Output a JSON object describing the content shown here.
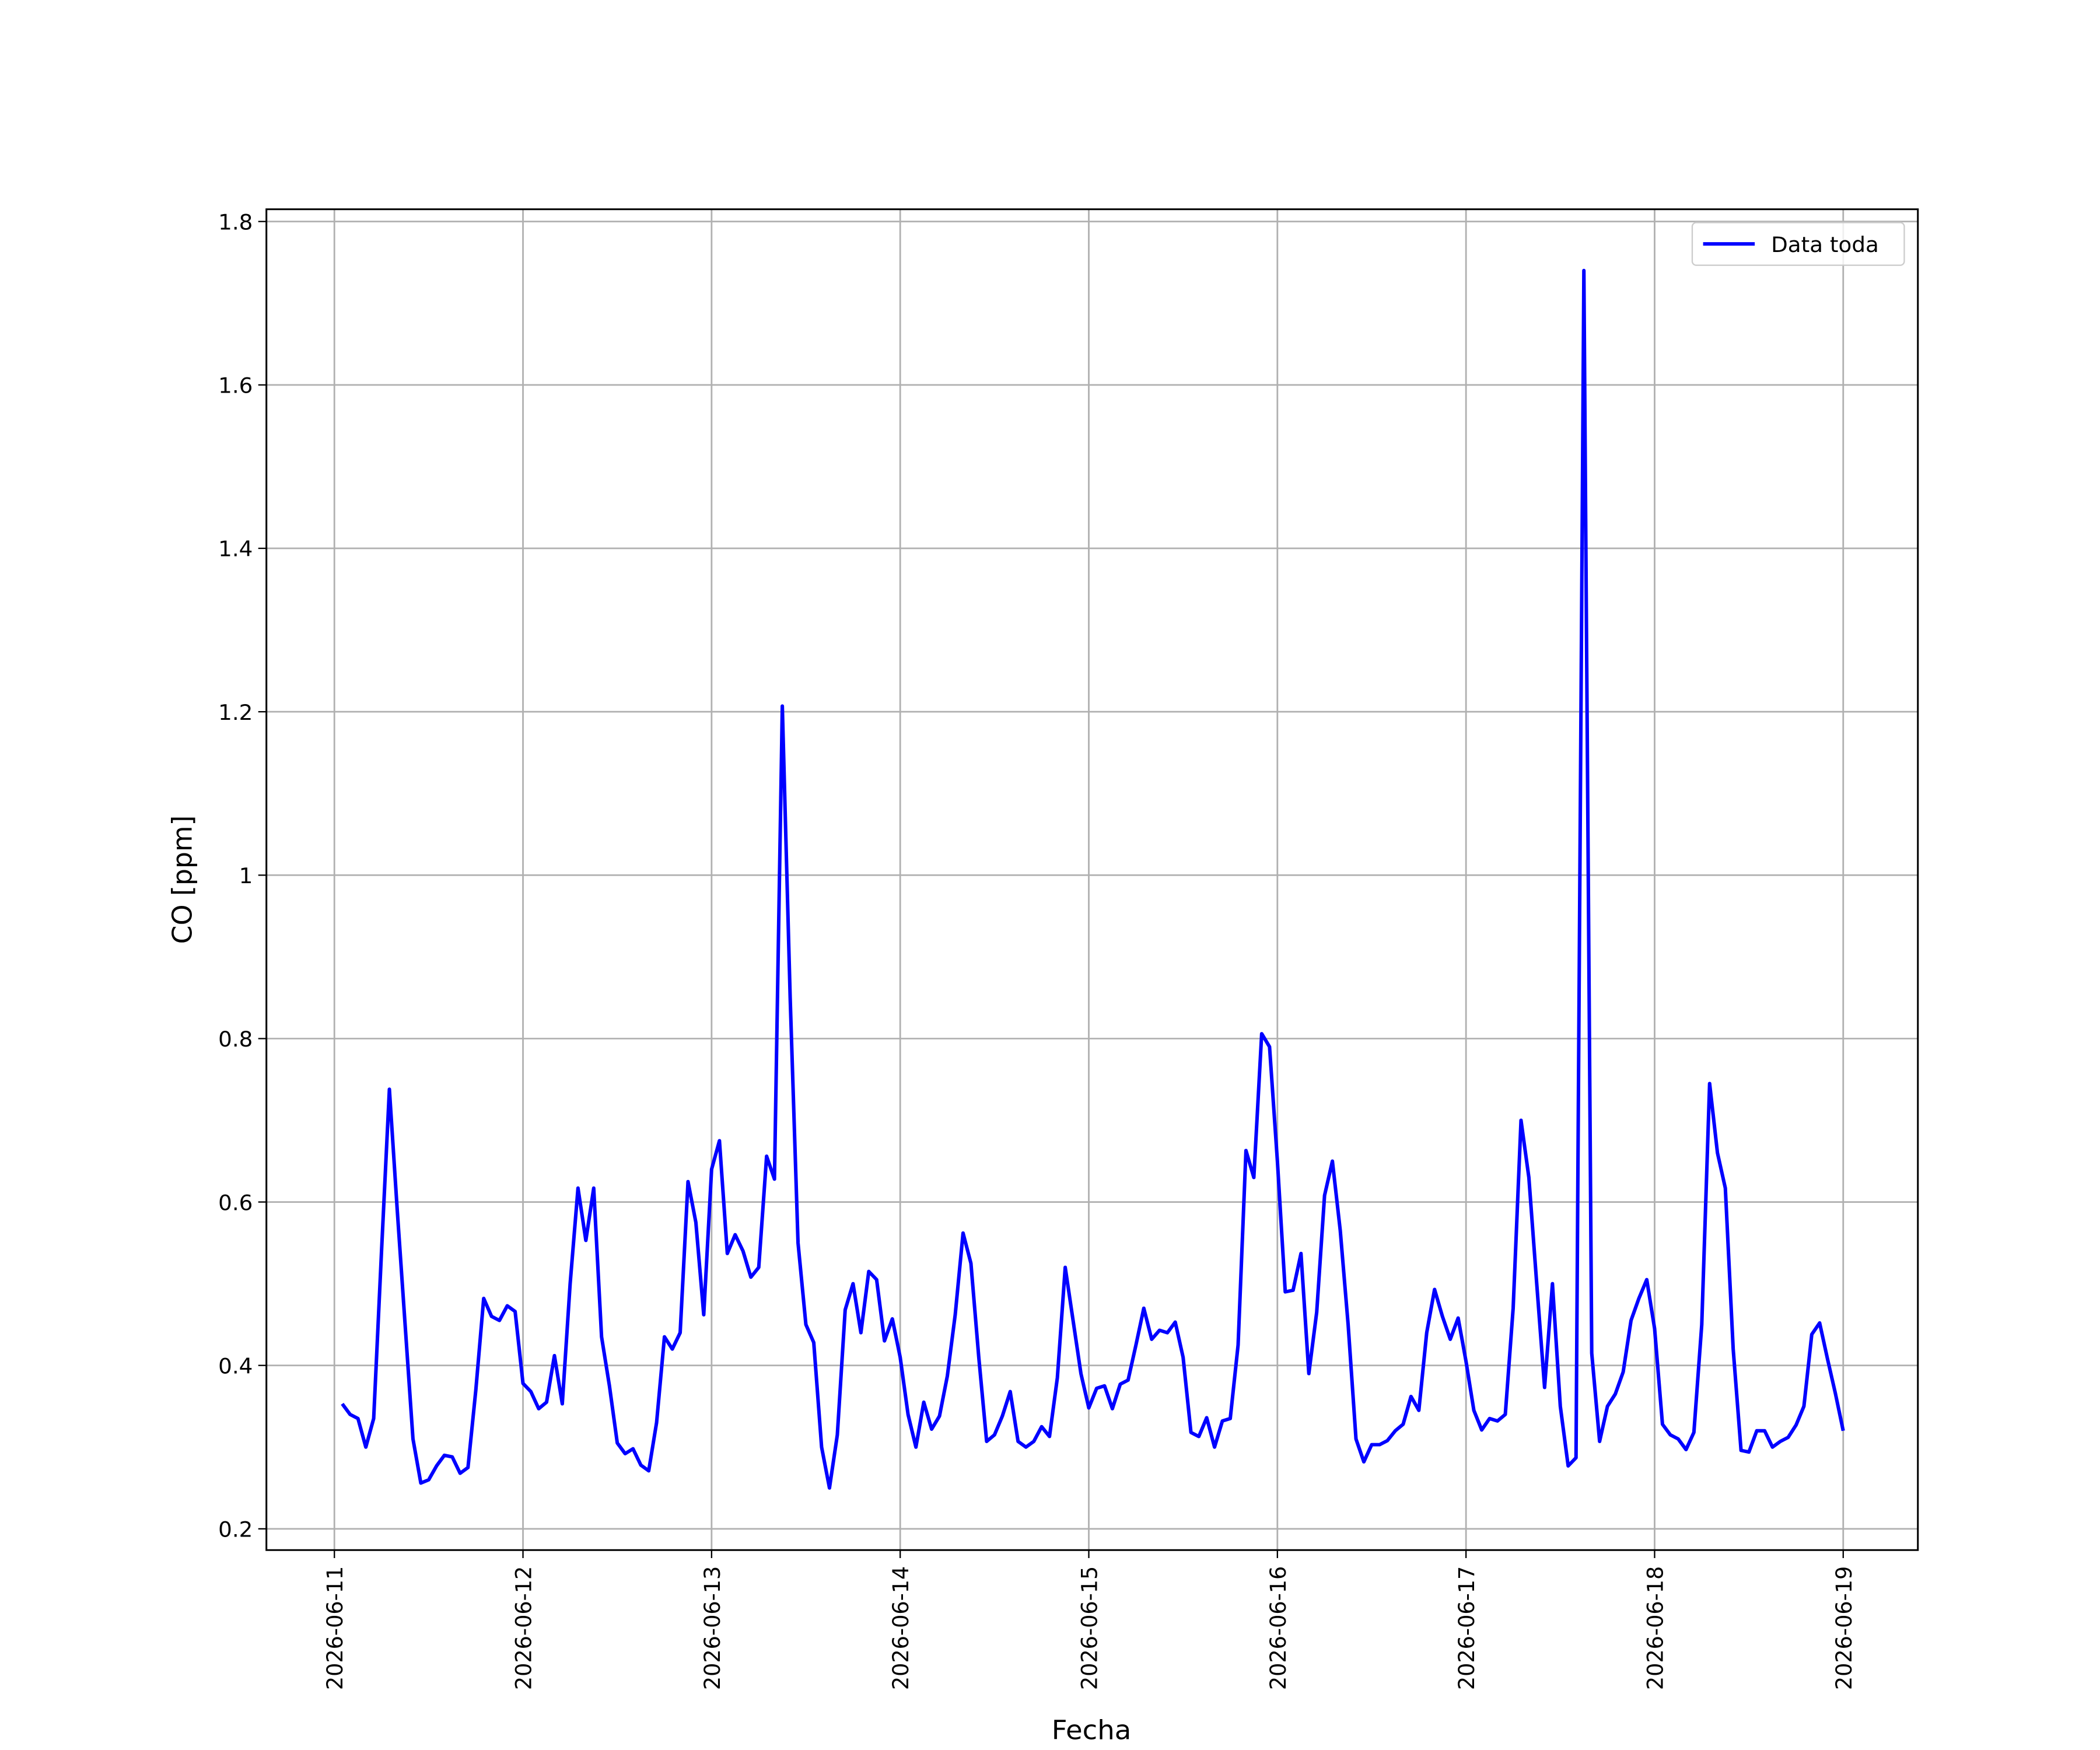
{
  "chart_data": {
    "type": "line",
    "x_label": "Fecha",
    "y_label": "CO [ppm]",
    "x": [
      "2026-06-11 01:00",
      "2026-06-11 02:00",
      "2026-06-11 03:00",
      "2026-06-11 04:00",
      "2026-06-11 05:00",
      "2026-06-11 06:00",
      "2026-06-11 07:00",
      "2026-06-11 08:00",
      "2026-06-11 09:00",
      "2026-06-11 10:00",
      "2026-06-11 11:00",
      "2026-06-11 12:00",
      "2026-06-11 13:00",
      "2026-06-11 14:00",
      "2026-06-11 15:00",
      "2026-06-11 16:00",
      "2026-06-11 17:00",
      "2026-06-11 18:00",
      "2026-06-11 19:00",
      "2026-06-11 20:00",
      "2026-06-11 21:00",
      "2026-06-11 22:00",
      "2026-06-11 23:00",
      "2026-06-12 00:00",
      "2026-06-12 01:00",
      "2026-06-12 02:00",
      "2026-06-12 03:00",
      "2026-06-12 04:00",
      "2026-06-12 05:00",
      "2026-06-12 06:00",
      "2026-06-12 07:00",
      "2026-06-12 08:00",
      "2026-06-12 09:00",
      "2026-06-12 10:00",
      "2026-06-12 11:00",
      "2026-06-12 12:00",
      "2026-06-12 13:00",
      "2026-06-12 14:00",
      "2026-06-12 15:00",
      "2026-06-12 16:00",
      "2026-06-12 17:00",
      "2026-06-12 18:00",
      "2026-06-12 19:00",
      "2026-06-12 20:00",
      "2026-06-12 21:00",
      "2026-06-12 22:00",
      "2026-06-12 23:00",
      "2026-06-13 00:00",
      "2026-06-13 01:00",
      "2026-06-13 02:00",
      "2026-06-13 03:00",
      "2026-06-13 04:00",
      "2026-06-13 05:00",
      "2026-06-13 06:00",
      "2026-06-13 07:00",
      "2026-06-13 08:00",
      "2026-06-13 09:00",
      "2026-06-13 10:00",
      "2026-06-13 11:00",
      "2026-06-13 12:00",
      "2026-06-13 13:00",
      "2026-06-13 14:00",
      "2026-06-13 15:00",
      "2026-06-13 16:00",
      "2026-06-13 17:00",
      "2026-06-13 18:00",
      "2026-06-13 19:00",
      "2026-06-13 20:00",
      "2026-06-13 21:00",
      "2026-06-13 22:00",
      "2026-06-13 23:00",
      "2026-06-14 00:00",
      "2026-06-14 01:00",
      "2026-06-14 02:00",
      "2026-06-14 03:00",
      "2026-06-14 04:00",
      "2026-06-14 05:00",
      "2026-06-14 06:00",
      "2026-06-14 07:00",
      "2026-06-14 08:00",
      "2026-06-14 09:00",
      "2026-06-14 10:00",
      "2026-06-14 11:00",
      "2026-06-14 12:00",
      "2026-06-14 13:00",
      "2026-06-14 14:00",
      "2026-06-14 15:00",
      "2026-06-14 16:00",
      "2026-06-14 17:00",
      "2026-06-14 18:00",
      "2026-06-14 19:00",
      "2026-06-14 20:00",
      "2026-06-14 21:00",
      "2026-06-14 22:00",
      "2026-06-14 23:00",
      "2026-06-15 00:00",
      "2026-06-15 01:00",
      "2026-06-15 02:00",
      "2026-06-15 03:00",
      "2026-06-15 04:00",
      "2026-06-15 05:00",
      "2026-06-15 06:00",
      "2026-06-15 07:00",
      "2026-06-15 08:00",
      "2026-06-15 09:00",
      "2026-06-15 10:00",
      "2026-06-15 11:00",
      "2026-06-15 12:00",
      "2026-06-15 13:00",
      "2026-06-15 14:00",
      "2026-06-15 15:00",
      "2026-06-15 16:00",
      "2026-06-15 17:00",
      "2026-06-15 18:00",
      "2026-06-15 19:00",
      "2026-06-15 20:00",
      "2026-06-15 21:00",
      "2026-06-15 22:00",
      "2026-06-15 23:00",
      "2026-06-16 00:00",
      "2026-06-16 01:00",
      "2026-06-16 02:00",
      "2026-06-16 03:00",
      "2026-06-16 04:00",
      "2026-06-16 05:00",
      "2026-06-16 06:00",
      "2026-06-16 07:00",
      "2026-06-16 08:00",
      "2026-06-16 09:00",
      "2026-06-16 10:00",
      "2026-06-16 11:00",
      "2026-06-16 12:00",
      "2026-06-16 13:00",
      "2026-06-16 14:00",
      "2026-06-16 15:00",
      "2026-06-16 16:00",
      "2026-06-16 17:00",
      "2026-06-16 18:00",
      "2026-06-16 19:00",
      "2026-06-16 20:00",
      "2026-06-16 21:00",
      "2026-06-16 22:00",
      "2026-06-16 23:00",
      "2026-06-17 00:00",
      "2026-06-17 01:00",
      "2026-06-17 02:00",
      "2026-06-17 03:00",
      "2026-06-17 04:00",
      "2026-06-17 05:00",
      "2026-06-17 06:00",
      "2026-06-17 07:00",
      "2026-06-17 08:00",
      "2026-06-17 09:00",
      "2026-06-17 10:00",
      "2026-06-17 11:00",
      "2026-06-17 12:00",
      "2026-06-17 13:00",
      "2026-06-17 14:00",
      "2026-06-17 15:00",
      "2026-06-17 16:00",
      "2026-06-17 17:00",
      "2026-06-17 18:00",
      "2026-06-17 19:00",
      "2026-06-17 20:00",
      "2026-06-17 21:00",
      "2026-06-17 22:00",
      "2026-06-17 23:00",
      "2026-06-18 00:00",
      "2026-06-18 01:00",
      "2026-06-18 02:00",
      "2026-06-18 03:00",
      "2026-06-18 04:00",
      "2026-06-18 05:00",
      "2026-06-18 06:00",
      "2026-06-18 07:00",
      "2026-06-18 08:00",
      "2026-06-18 09:00",
      "2026-06-18 10:00",
      "2026-06-18 11:00",
      "2026-06-18 12:00",
      "2026-06-18 13:00",
      "2026-06-18 14:00",
      "2026-06-18 15:00",
      "2026-06-18 16:00",
      "2026-06-18 17:00",
      "2026-06-18 18:00",
      "2026-06-18 19:00",
      "2026-06-18 20:00",
      "2026-06-18 21:00",
      "2026-06-18 22:00",
      "2026-06-18 23:00",
      "2026-06-19 00:00"
    ],
    "series": [
      {
        "name": "Data toda",
        "color": "#0000ff",
        "values": [
          0.353,
          0.34,
          0.335,
          0.3,
          0.335,
          0.54,
          0.738,
          0.59,
          0.45,
          0.31,
          0.256,
          0.26,
          0.277,
          0.29,
          0.288,
          0.268,
          0.275,
          0.37,
          0.482,
          0.46,
          0.455,
          0.473,
          0.466,
          0.378,
          0.368,
          0.347,
          0.355,
          0.412,
          0.353,
          0.5,
          0.617,
          0.553,
          0.617,
          0.435,
          0.375,
          0.305,
          0.292,
          0.298,
          0.278,
          0.271,
          0.33,
          0.435,
          0.42,
          0.44,
          0.625,
          0.575,
          0.462,
          0.64,
          0.675,
          0.537,
          0.56,
          0.54,
          0.508,
          0.52,
          0.656,
          0.628,
          1.207,
          0.85,
          0.55,
          0.45,
          0.428,
          0.3,
          0.25,
          0.315,
          0.468,
          0.5,
          0.44,
          0.515,
          0.505,
          0.43,
          0.457,
          0.41,
          0.34,
          0.3,
          0.355,
          0.322,
          0.338,
          0.387,
          0.462,
          0.562,
          0.525,
          0.41,
          0.307,
          0.315,
          0.338,
          0.368,
          0.307,
          0.3,
          0.307,
          0.325,
          0.313,
          0.385,
          0.52,
          0.455,
          0.39,
          0.348,
          0.372,
          0.375,
          0.347,
          0.377,
          0.382,
          0.425,
          0.47,
          0.432,
          0.443,
          0.44,
          0.453,
          0.41,
          0.318,
          0.313,
          0.336,
          0.3,
          0.332,
          0.335,
          0.425,
          0.663,
          0.63,
          0.806,
          0.79,
          0.65,
          0.49,
          0.492,
          0.537,
          0.39,
          0.465,
          0.608,
          0.65,
          0.565,
          0.45,
          0.31,
          0.282,
          0.303,
          0.303,
          0.308,
          0.32,
          0.328,
          0.362,
          0.345,
          0.44,
          0.493,
          0.46,
          0.432,
          0.458,
          0.405,
          0.345,
          0.321,
          0.335,
          0.332,
          0.34,
          0.47,
          0.7,
          0.63,
          0.5,
          0.373,
          0.5,
          0.35,
          0.277,
          0.287,
          1.74,
          0.415,
          0.307,
          0.35,
          0.365,
          0.392,
          0.455,
          0.482,
          0.505,
          0.445,
          0.328,
          0.315,
          0.31,
          0.297,
          0.318,
          0.45,
          0.745,
          0.66,
          0.617,
          0.42,
          0.296,
          0.294,
          0.32,
          0.32,
          0.3,
          0.307,
          0.312,
          0.327,
          0.35,
          0.438,
          0.452,
          0.408,
          0.366,
          0.32
        ]
      }
    ],
    "xlim": [
      "2026-06-10 15:21",
      "2026-06-19 09:30"
    ],
    "xticks": [
      "2026-06-11",
      "2026-06-12",
      "2026-06-13",
      "2026-06-14",
      "2026-06-15",
      "2026-06-16",
      "2026-06-17",
      "2026-06-18",
      "2026-06-19"
    ],
    "ylim": [
      0.174,
      1.815
    ],
    "yticks": [
      0.2,
      0.4,
      0.6,
      0.8,
      1.0,
      1.2,
      1.4,
      1.6,
      1.8
    ],
    "grid": true,
    "legend": "upper right"
  }
}
